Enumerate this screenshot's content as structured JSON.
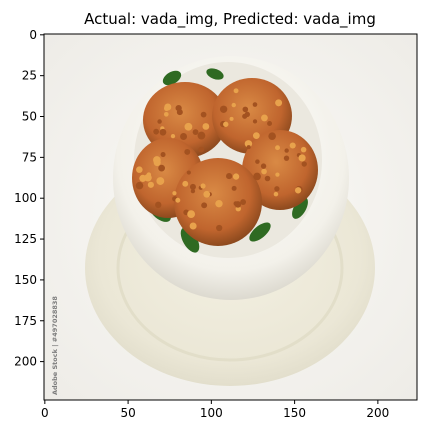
{
  "figure": {
    "title": "Actual: vada_img, Predicted: vada_img"
  },
  "watermark": {
    "text": "Adobe Stock | #497028838"
  },
  "chart_data": {
    "type": "image",
    "title": "Actual: vada_img, Predicted: vada_img",
    "xlim": [
      -0.5,
      223.5
    ],
    "ylim": [
      223.5,
      -0.5
    ],
    "xticks": [
      0,
      50,
      100,
      150,
      200
    ],
    "yticks": [
      0,
      25,
      50,
      75,
      100,
      125,
      150,
      175,
      200
    ],
    "xtick_labels": [
      "0",
      "50",
      "100",
      "150",
      "200"
    ],
    "ytick_labels": [
      "0",
      "25",
      "50",
      "75",
      "100",
      "125",
      "150",
      "175",
      "200"
    ],
    "image_content": "bowl of fried vada fritters with curry leaves on a saucer",
    "colors": {
      "background": "#f4f2ee",
      "bowl": "#f7f5ef",
      "vada": "#c46f35",
      "leaf": "#2f6a22"
    }
  }
}
